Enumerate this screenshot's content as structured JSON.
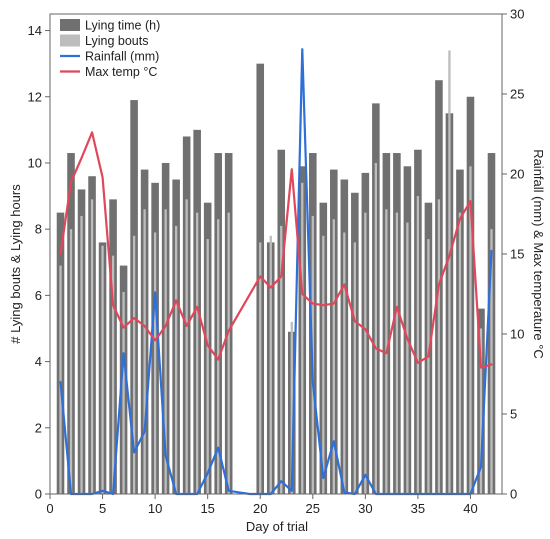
{
  "chart_data": {
    "type": "bar+line",
    "xlabel": "Day of trial",
    "ylabel_left": "# Lying bouts & Lying hours",
    "ylabel_right": "Rainfall (mm) & Max temperature °C",
    "xlim": [
      0,
      43
    ],
    "ylim_left": [
      0,
      14.5
    ],
    "ylim_right": [
      0,
      30
    ],
    "x_ticks": [
      0,
      5,
      10,
      15,
      20,
      25,
      30,
      35,
      40
    ],
    "y_left_ticks": [
      0,
      2,
      4,
      6,
      8,
      10,
      12,
      14
    ],
    "y_right_ticks": [
      0,
      5,
      10,
      15,
      20,
      25,
      30
    ],
    "grid": false,
    "legend_position": "top-left",
    "series": [
      {
        "name": "Lying time (h)",
        "kind": "bar",
        "axis": "left",
        "color": "#707070",
        "x": [
          1,
          2,
          3,
          4,
          5,
          6,
          7,
          8,
          9,
          10,
          11,
          12,
          13,
          14,
          15,
          16,
          17,
          20,
          21,
          22,
          23,
          24,
          25,
          26,
          27,
          28,
          29,
          30,
          31,
          32,
          33,
          34,
          35,
          36,
          37,
          38,
          39,
          40,
          41,
          42
        ],
        "values": [
          8.5,
          10.3,
          9.2,
          9.6,
          7.6,
          8.9,
          6.9,
          11.9,
          9.8,
          9.4,
          10.0,
          9.5,
          10.8,
          11.0,
          8.8,
          10.3,
          10.3,
          13.0,
          7.6,
          10.4,
          4.9,
          9.9,
          10.3,
          8.8,
          9.8,
          9.5,
          9.1,
          9.7,
          11.8,
          10.3,
          10.3,
          9.9,
          10.4,
          8.8,
          12.5,
          11.5,
          9.8,
          12.0,
          5.6,
          10.3
        ]
      },
      {
        "name": "Lying bouts",
        "kind": "bar",
        "axis": "left",
        "color": "#bdbdbd",
        "x": [
          1,
          2,
          3,
          4,
          5,
          6,
          7,
          8,
          9,
          10,
          11,
          12,
          13,
          14,
          15,
          16,
          17,
          20,
          21,
          22,
          23,
          24,
          25,
          26,
          27,
          28,
          29,
          30,
          31,
          32,
          33,
          34,
          35,
          36,
          37,
          38,
          39,
          40,
          41,
          42
        ],
        "values": [
          6.9,
          8.0,
          8.4,
          8.9,
          7.5,
          7.2,
          6.1,
          7.8,
          8.6,
          7.9,
          8.6,
          8.1,
          8.9,
          8.5,
          7.7,
          8.3,
          8.5,
          7.6,
          7.8,
          8.1,
          5.2,
          9.4,
          8.4,
          7.8,
          8.3,
          7.9,
          7.6,
          8.5,
          10.0,
          8.6,
          8.5,
          8.2,
          9.0,
          7.7,
          8.9,
          13.4,
          8.5,
          9.9,
          5.0,
          8.0
        ]
      },
      {
        "name": "Rainfall (mm)",
        "kind": "line",
        "axis": "right",
        "color": "#2f6fd8",
        "x": [
          1,
          2,
          3,
          4,
          5,
          6,
          7,
          8,
          9,
          10,
          11,
          12,
          13,
          14,
          15,
          16,
          17,
          18,
          19,
          20,
          21,
          22,
          23,
          24,
          25,
          26,
          27,
          28,
          29,
          30,
          31,
          32,
          33,
          34,
          35,
          36,
          37,
          38,
          39,
          40,
          41,
          42
        ],
        "values": [
          7.0,
          0.0,
          0.0,
          0.0,
          0.2,
          0.0,
          8.8,
          2.6,
          3.9,
          12.6,
          2.4,
          0.0,
          0.0,
          0.0,
          1.3,
          2.9,
          0.2,
          0.1,
          0.0,
          0.0,
          0.0,
          0.8,
          0.2,
          27.8,
          7.0,
          1.0,
          3.3,
          0.1,
          0.0,
          1.2,
          0.0,
          0.0,
          0.0,
          0.0,
          0.0,
          0.0,
          0.0,
          0.0,
          0.0,
          0.0,
          1.7,
          15.2
        ]
      },
      {
        "name": "Max temp °C",
        "kind": "line",
        "axis": "right",
        "color": "#e0475a",
        "x": [
          1,
          2,
          3,
          4,
          5,
          6,
          7,
          8,
          9,
          10,
          11,
          12,
          13,
          14,
          15,
          16,
          17,
          20,
          21,
          22,
          23,
          24,
          25,
          26,
          27,
          28,
          29,
          30,
          31,
          32,
          33,
          34,
          35,
          36,
          37,
          38,
          39,
          40,
          41,
          42
        ],
        "values": [
          15.0,
          19.5,
          21.0,
          22.6,
          19.8,
          11.8,
          10.4,
          11.0,
          10.5,
          9.6,
          10.5,
          12.1,
          10.5,
          11.7,
          9.3,
          8.4,
          10.2,
          13.6,
          12.9,
          13.6,
          20.3,
          12.5,
          11.9,
          11.8,
          11.9,
          13.1,
          10.8,
          10.3,
          9.1,
          8.8,
          11.7,
          9.7,
          8.2,
          8.6,
          13.1,
          14.9,
          17.2,
          18.3,
          7.9,
          8.1
        ]
      }
    ]
  }
}
